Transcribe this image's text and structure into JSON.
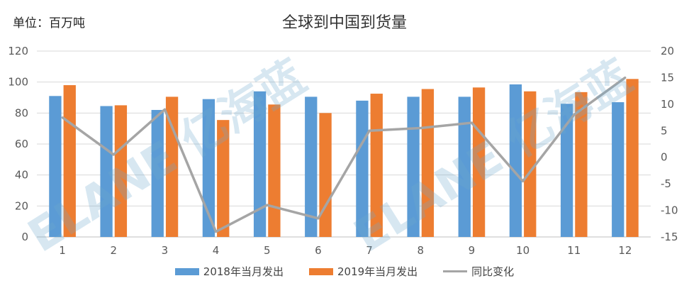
{
  "unit_label": "单位：百万吨",
  "watermark": "ELANE 亿海蓝",
  "chart_data": {
    "type": "bar",
    "title": "全球到中国到货量",
    "categories": [
      "1",
      "2",
      "3",
      "4",
      "5",
      "6",
      "7",
      "8",
      "9",
      "10",
      "11",
      "12"
    ],
    "series": [
      {
        "name": "2018年当月发出",
        "type": "bar",
        "axis": "left",
        "color": "#5b9bd5",
        "values": [
          91,
          84.5,
          82,
          89,
          94,
          90.5,
          88,
          90.5,
          90.5,
          98.5,
          86,
          87
        ]
      },
      {
        "name": "2019年当月发出",
        "type": "bar",
        "axis": "left",
        "color": "#ed7d31",
        "values": [
          98,
          85,
          90.5,
          75.5,
          85.5,
          80,
          92.5,
          95.5,
          96.5,
          94,
          93.5,
          102
        ]
      },
      {
        "name": "同比变化",
        "type": "line",
        "axis": "right",
        "color": "#a5a5a5",
        "values": [
          7.5,
          0.5,
          9,
          -14,
          -9,
          -11.5,
          5,
          5.5,
          6.5,
          -4.5,
          8,
          15
        ]
      }
    ],
    "y_left": {
      "min": 0,
      "max": 120,
      "ticks": [
        0,
        20,
        40,
        60,
        80,
        100,
        120
      ]
    },
    "y_right": {
      "min": -15,
      "max": 20,
      "ticks": [
        -15,
        -10,
        -5,
        0,
        5,
        10,
        15,
        20
      ]
    },
    "grid": true,
    "legend_position": "bottom"
  }
}
